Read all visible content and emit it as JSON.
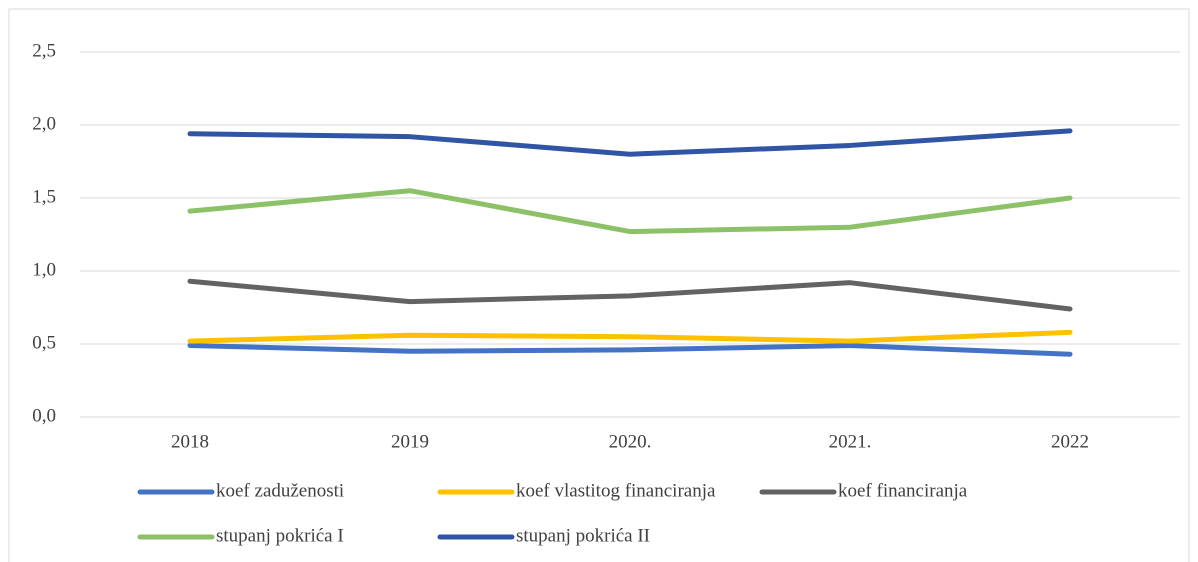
{
  "chart_data": {
    "type": "line",
    "categories": [
      "2018",
      "2019",
      "2020.",
      "2021.",
      "2022"
    ],
    "series": [
      {
        "name": "koef zaduženosti",
        "color": "#4472c4",
        "values": [
          0.49,
          0.45,
          0.46,
          0.49,
          0.43
        ]
      },
      {
        "name": "koef vlastitog financiranja",
        "color": "#ffc000",
        "values": [
          0.52,
          0.56,
          0.55,
          0.52,
          0.58
        ]
      },
      {
        "name": "koef financiranja",
        "color": "#636363",
        "values": [
          0.93,
          0.79,
          0.83,
          0.92,
          0.74
        ]
      },
      {
        "name": "stupanj pokrića I",
        "color": "#8cc168",
        "values": [
          1.41,
          1.55,
          1.27,
          1.3,
          1.5
        ]
      },
      {
        "name": "stupanj pokrića II",
        "color": "#2f55a4",
        "values": [
          1.94,
          1.92,
          1.8,
          1.86,
          1.96
        ]
      }
    ],
    "ylim": [
      0,
      2.5
    ],
    "yticks": [
      {
        "value": 0,
        "label": "0,0"
      },
      {
        "value": 0.5,
        "label": "0,5"
      },
      {
        "value": 1,
        "label": "1,0"
      },
      {
        "value": 1.5,
        "label": "1,5"
      },
      {
        "value": 2,
        "label": "2,0"
      },
      {
        "value": 2.5,
        "label": "2,5"
      }
    ],
    "grid": true
  }
}
